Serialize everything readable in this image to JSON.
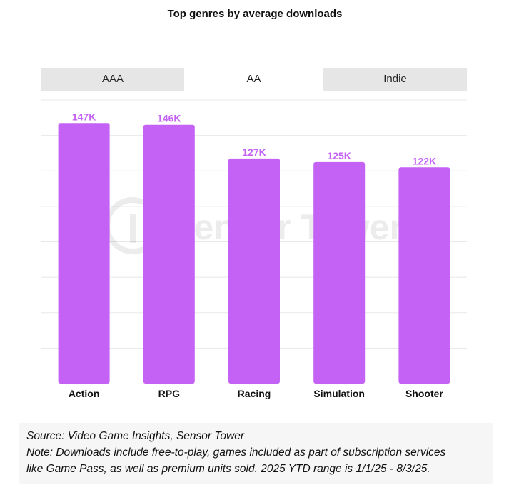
{
  "title": "Top genres by average downloads",
  "tabs": [
    {
      "label": "AAA",
      "active": false
    },
    {
      "label": "AA",
      "active": true
    },
    {
      "label": "Indie",
      "active": false
    }
  ],
  "watermark": "Sensor Tower",
  "colors": {
    "bar": "#c462f5",
    "label": "#c462f5",
    "tab_inactive": "#e6e6e6",
    "grid": "#e8e8e8"
  },
  "chart_data": {
    "type": "bar",
    "categories": [
      "Action",
      "RPG",
      "Racing",
      "Simulation",
      "Shooter"
    ],
    "values": [
      147,
      146,
      127,
      125,
      122
    ],
    "value_labels": [
      "147K",
      "146K",
      "127K",
      "125K",
      "122K"
    ],
    "title": "Top genres by average downloads",
    "xlabel": "",
    "ylabel": "",
    "ylim": [
      0,
      160
    ],
    "grid": true
  },
  "note": {
    "source": "Source: Video Game Insights, Sensor Tower",
    "line1": "Note: Downloads include free-to-play, games included as part of subscription services",
    "line2": "like Game Pass, as well as premium units sold. 2025 YTD range is 1/1/25 - 8/3/25."
  }
}
